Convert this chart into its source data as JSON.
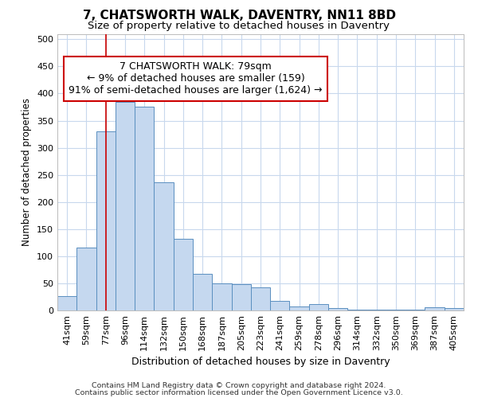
{
  "title": "7, CHATSWORTH WALK, DAVENTRY, NN11 8BD",
  "subtitle": "Size of property relative to detached houses in Daventry",
  "xlabel": "Distribution of detached houses by size in Daventry",
  "ylabel": "Number of detached properties",
  "categories": [
    "41sqm",
    "59sqm",
    "77sqm",
    "96sqm",
    "114sqm",
    "132sqm",
    "150sqm",
    "168sqm",
    "187sqm",
    "205sqm",
    "223sqm",
    "241sqm",
    "259sqm",
    "278sqm",
    "296sqm",
    "314sqm",
    "332sqm",
    "350sqm",
    "369sqm",
    "387sqm",
    "405sqm"
  ],
  "values": [
    27,
    116,
    330,
    385,
    375,
    237,
    132,
    68,
    50,
    48,
    42,
    18,
    8,
    12,
    5,
    2,
    1,
    1,
    1,
    6,
    5
  ],
  "bar_color": "#c5d8ef",
  "bar_edge_color": "#5a8fc0",
  "vline_x_index": 2,
  "vline_color": "#cc0000",
  "annotation_line1": "7 CHATSWORTH WALK: 79sqm",
  "annotation_line2": "← 9% of detached houses are smaller (159)",
  "annotation_line3": "91% of semi-detached houses are larger (1,624) →",
  "annotation_box_color": "#ffffff",
  "annotation_box_edge": "#cc0000",
  "ylim": [
    0,
    510
  ],
  "yticks": [
    0,
    50,
    100,
    150,
    200,
    250,
    300,
    350,
    400,
    450,
    500
  ],
  "footer1": "Contains HM Land Registry data © Crown copyright and database right 2024.",
  "footer2": "Contains public sector information licensed under the Open Government Licence v3.0.",
  "bg_color": "#ffffff",
  "grid_color": "#c8d8ed",
  "title_fontsize": 11,
  "subtitle_fontsize": 9.5,
  "ylabel_fontsize": 8.5,
  "xlabel_fontsize": 9,
  "tick_fontsize": 8,
  "footer_fontsize": 6.8,
  "ann_fontsize": 9
}
